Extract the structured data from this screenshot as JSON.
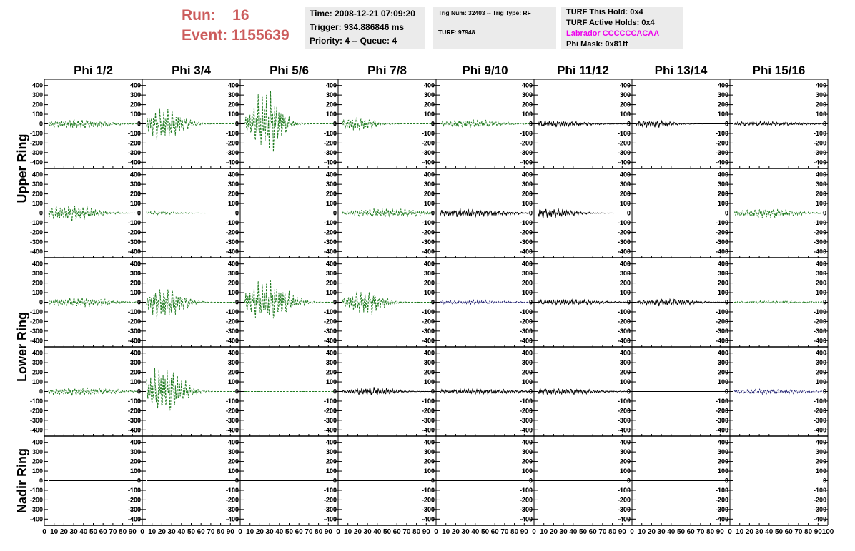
{
  "run": {
    "label": "Run:",
    "value": "16"
  },
  "event": {
    "label": "Event:",
    "value": "1155639"
  },
  "info1": {
    "time": "Time: 2008-12-21 07:09:20",
    "trigger": "Trigger: 934.886846 ms",
    "priority": "Priority: 4 -- Queue: 4"
  },
  "info2": {
    "trig": "Trig Num: 32403 -- Trig Type: RF",
    "turf": "TURF: 97948"
  },
  "info3": {
    "hold": "TURF This Hold: 0x4",
    "active": "TURF Active Holds: 0x4",
    "labrador": "Labrador CCCCCCACAA",
    "phimask": "Phi Mask: 0x81ff"
  },
  "colors": {
    "title_red": "#cc5c5c",
    "labrador_magenta": "#ee00ee",
    "trace_green": "#1e7a1e",
    "trace_black": "#000000",
    "trace_navy": "#1c1c6e",
    "info_bg": "#ebebeb"
  },
  "chart_data": {
    "type": "line",
    "columns": [
      "Phi 1/2",
      "Phi 3/4",
      "Phi 5/6",
      "Phi 7/8",
      "Phi 9/10",
      "Phi 11/12",
      "Phi 13/14",
      "Phi 15/16"
    ],
    "ring_labels": [
      {
        "label": "Upper Ring",
        "rows": [
          0,
          1
        ]
      },
      {
        "label": "Lower Ring",
        "rows": [
          2,
          3
        ]
      },
      {
        "label": "Nadir Ring",
        "rows": [
          4
        ]
      }
    ],
    "y_ticks": [
      "400",
      "300",
      "200",
      "100",
      "0",
      "-100",
      "-200",
      "-300",
      "-400"
    ],
    "ylim": [
      -420,
      420
    ],
    "x_tick_labels": [
      "0",
      "10",
      "20",
      "30",
      "40",
      "50",
      "60",
      "70",
      "80",
      "90",
      "100"
    ],
    "xlim": [
      0,
      100
    ],
    "panels": [
      [
        {
          "color": "green",
          "dashed": true,
          "amp": 60,
          "peak": 0.3,
          "width": 0.4,
          "baseline": 0
        },
        {
          "color": "green",
          "dashed": true,
          "amp": 200,
          "peak": 0.2,
          "width": 0.25,
          "baseline": 0
        },
        {
          "color": "green",
          "dashed": true,
          "amp": 400,
          "peak": 0.25,
          "width": 0.2,
          "baseline": 0
        },
        {
          "color": "green",
          "dashed": true,
          "amp": 90,
          "peak": 0.15,
          "width": 0.25,
          "baseline": 0
        },
        {
          "color": "green",
          "dashed": true,
          "amp": 50,
          "peak": 0.35,
          "width": 0.4,
          "baseline": 0
        },
        {
          "color": "black",
          "dashed": false,
          "amp": 40,
          "peak": 0.1,
          "width": 0.5,
          "baseline": 0
        },
        {
          "color": "black",
          "dashed": false,
          "amp": 45,
          "peak": 0.15,
          "width": 0.3,
          "baseline": 0
        },
        {
          "color": "black",
          "dashed": false,
          "amp": 25,
          "peak": 0.3,
          "width": 0.6,
          "baseline": 0
        }
      ],
      [
        {
          "color": "green",
          "dashed": true,
          "amp": 100,
          "peak": 0.25,
          "width": 0.35,
          "baseline": 0
        },
        {
          "color": "green",
          "dashed": true,
          "amp": 20,
          "peak": 0.1,
          "width": 0.3,
          "baseline": 0
        },
        {
          "color": "green",
          "dashed": true,
          "amp": 0,
          "peak": 0.5,
          "width": 0.5,
          "baseline": 0
        },
        {
          "color": "green",
          "dashed": true,
          "amp": 60,
          "peak": 0.5,
          "width": 0.45,
          "baseline": 0
        },
        {
          "color": "black",
          "dashed": false,
          "amp": 50,
          "peak": 0.3,
          "width": 0.5,
          "baseline": 0
        },
        {
          "color": "black",
          "dashed": false,
          "amp": 60,
          "peak": 0.1,
          "width": 0.35,
          "baseline": 0
        },
        {
          "color": "black",
          "dashed": false,
          "amp": 0,
          "peak": 0.5,
          "width": 0.5,
          "baseline": 0
        },
        {
          "color": "green",
          "dashed": true,
          "amp": 60,
          "peak": 0.35,
          "width": 0.4,
          "baseline": 0
        }
      ],
      [
        {
          "color": "green",
          "dashed": true,
          "amp": 60,
          "peak": 0.35,
          "width": 0.4,
          "baseline": 0
        },
        {
          "color": "green",
          "dashed": true,
          "amp": 200,
          "peak": 0.2,
          "width": 0.25,
          "baseline": 0
        },
        {
          "color": "green",
          "dashed": true,
          "amp": 250,
          "peak": 0.25,
          "width": 0.3,
          "baseline": 0
        },
        {
          "color": "green",
          "dashed": true,
          "amp": 150,
          "peak": 0.25,
          "width": 0.25,
          "baseline": 0
        },
        {
          "color": "navy",
          "dashed": true,
          "amp": 25,
          "peak": 0.3,
          "width": 0.5,
          "baseline": 0
        },
        {
          "color": "black",
          "dashed": false,
          "amp": 35,
          "peak": 0.3,
          "width": 0.5,
          "baseline": 0
        },
        {
          "color": "black",
          "dashed": false,
          "amp": 45,
          "peak": 0.35,
          "width": 0.35,
          "baseline": 0
        },
        {
          "color": "green",
          "dashed": true,
          "amp": 15,
          "peak": 0.5,
          "width": 0.6,
          "baseline": 0
        }
      ],
      [
        {
          "color": "green",
          "dashed": true,
          "amp": 50,
          "peak": 0.3,
          "width": 0.5,
          "baseline": 0
        },
        {
          "color": "green",
          "dashed": true,
          "amp": 300,
          "peak": 0.2,
          "width": 0.25,
          "baseline": 0
        },
        {
          "color": "green",
          "dashed": true,
          "amp": 0,
          "peak": 0.5,
          "width": 0.5,
          "baseline": 0
        },
        {
          "color": "black",
          "dashed": false,
          "amp": 50,
          "peak": 0.35,
          "width": 0.3,
          "baseline": 0
        },
        {
          "color": "black",
          "dashed": false,
          "amp": 30,
          "peak": 0.4,
          "width": 0.6,
          "baseline": 0
        },
        {
          "color": "black",
          "dashed": false,
          "amp": 40,
          "peak": 0.2,
          "width": 0.5,
          "baseline": 0
        },
        {
          "color": "black",
          "dashed": false,
          "amp": 0,
          "peak": 0.5,
          "width": 0.5,
          "baseline": 0
        },
        {
          "color": "navy",
          "dashed": true,
          "amp": 30,
          "peak": 0.4,
          "width": 0.5,
          "baseline": 0
        }
      ],
      [
        {
          "color": "black",
          "dashed": false,
          "amp": 0,
          "peak": 0.5,
          "width": 0.5,
          "baseline": 0
        },
        {
          "color": "black",
          "dashed": false,
          "amp": 0,
          "peak": 0.5,
          "width": 0.5,
          "baseline": 0
        },
        {
          "color": "black",
          "dashed": false,
          "amp": 0,
          "peak": 0.5,
          "width": 0.5,
          "baseline": 0
        },
        {
          "color": "black",
          "dashed": false,
          "amp": 0,
          "peak": 0.5,
          "width": 0.5,
          "baseline": 0
        },
        {
          "color": "black",
          "dashed": false,
          "amp": 0,
          "peak": 0.5,
          "width": 0.5,
          "baseline": 0
        },
        {
          "color": "black",
          "dashed": false,
          "amp": 0,
          "peak": 0.5,
          "width": 0.5,
          "baseline": 0
        },
        {
          "color": "black",
          "dashed": false,
          "amp": 0,
          "peak": 0.5,
          "width": 0.5,
          "baseline": 0
        },
        {
          "color": "none",
          "dashed": false,
          "amp": 0,
          "peak": 0.5,
          "width": 0.5,
          "baseline": 0
        }
      ]
    ]
  }
}
